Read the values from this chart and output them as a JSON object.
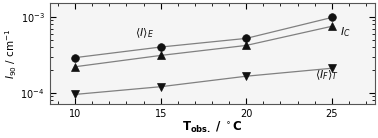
{
  "x": [
    10,
    15,
    20,
    25
  ],
  "series_I_E": [
    0.00029,
    0.0004,
    0.00052,
    0.00098
  ],
  "series_I_C": [
    0.00022,
    0.00031,
    0.00042,
    0.00075
  ],
  "series_I_F": [
    9.5e-05,
    0.00012,
    0.000165,
    0.00021
  ],
  "ylabel": "$I_{90}$ / cm$^{-1}$",
  "xlabel": "$\\mathbf{T_{obs.}}$ / $^{\\circ}$C",
  "label_IE": "$<\\!I\\!>_E$",
  "label_IC": "$I_C$",
  "label_IF": "$<\\!I_F\\!>_T$",
  "xlim": [
    8.5,
    27.5
  ],
  "ylim_low": 7e-05,
  "ylim_high": 0.0015,
  "xticks": [
    10,
    15,
    20,
    25
  ],
  "background_color": "#e8e8e8",
  "plot_bg": "#f5f5f5",
  "line_color": "#808080",
  "marker_color": "#111111",
  "text_color": "#111111",
  "figsize": [
    3.78,
    1.38
  ],
  "dpi": 100
}
